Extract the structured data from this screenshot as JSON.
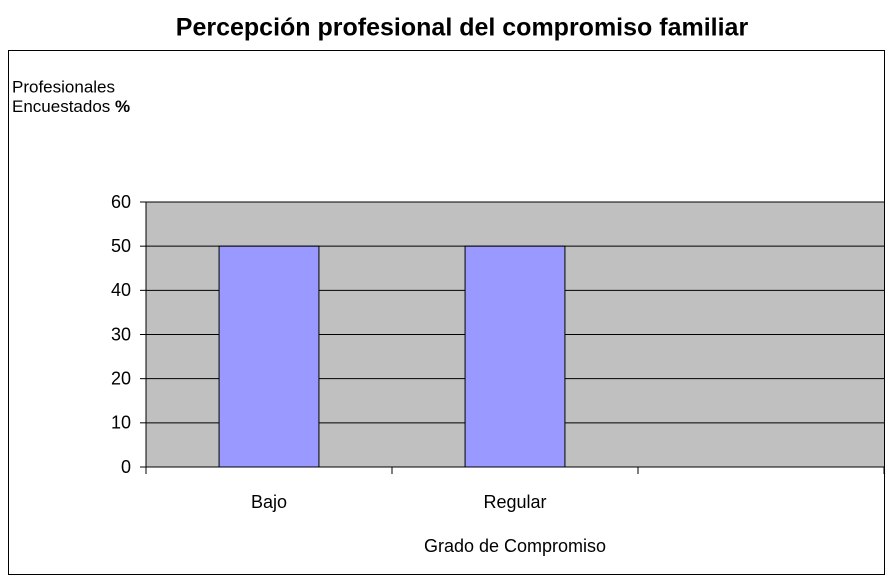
{
  "chart_data": {
    "type": "bar",
    "title": "Percepción profesional del compromiso familiar",
    "y_label": {
      "lines": [
        "Profesionales",
        "Encuestados"
      ],
      "unit": "%"
    },
    "x_label": "Grado de Compromiso",
    "categories": [
      "Bajo",
      "Regular",
      null
    ],
    "values": [
      50,
      50,
      null
    ],
    "color": "#9999ff",
    "plot_background": "#c0c0c0",
    "ylim": [
      0,
      60
    ],
    "yticks": [
      0,
      10,
      20,
      30,
      40,
      50,
      60
    ],
    "grid": true
  }
}
